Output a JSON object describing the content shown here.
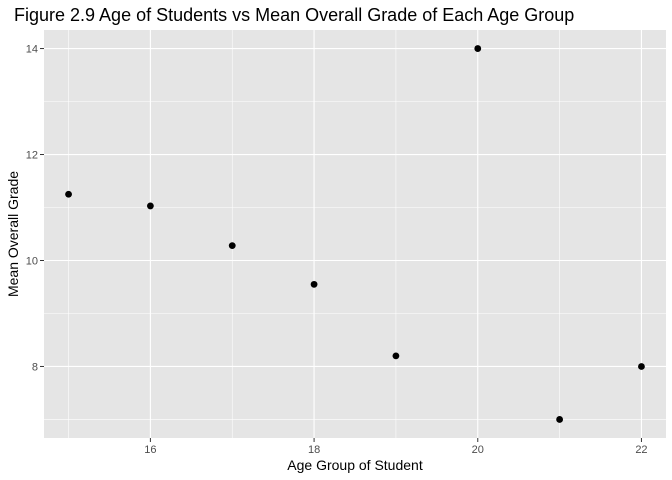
{
  "chart_data": {
    "type": "scatter",
    "title": "Figure 2.9 Age of Students vs Mean Overall Grade of Each Age Group",
    "xlabel": "Age Group of Student",
    "ylabel": "Mean Overall Grade",
    "xlim": [
      14.7,
      22.3
    ],
    "ylim": [
      6.65,
      14.35
    ],
    "xticks": [
      16,
      18,
      20,
      22
    ],
    "yticks": [
      8,
      10,
      12,
      14
    ],
    "grid": true,
    "legend": "none",
    "colors": {
      "panel": "#e5e5e5",
      "grid_major": "#ffffff",
      "point": "#000000"
    },
    "points": [
      {
        "x": 15,
        "y": 11.25
      },
      {
        "x": 16,
        "y": 11.03
      },
      {
        "x": 17,
        "y": 10.28
      },
      {
        "x": 18,
        "y": 9.55
      },
      {
        "x": 19,
        "y": 8.2
      },
      {
        "x": 20,
        "y": 14
      },
      {
        "x": 21,
        "y": 7
      },
      {
        "x": 22,
        "y": 8
      }
    ]
  }
}
